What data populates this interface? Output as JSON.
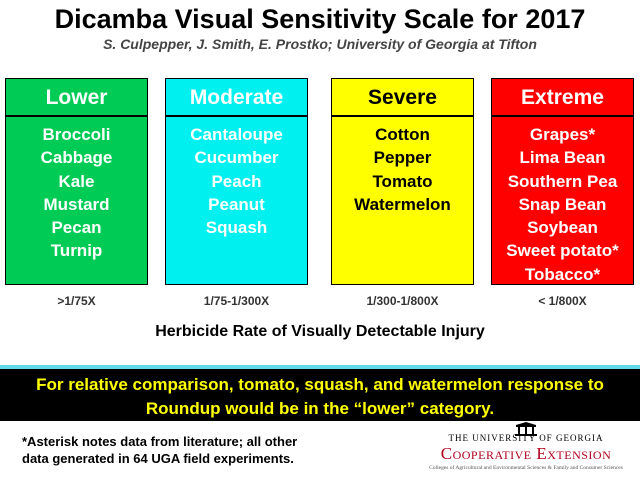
{
  "title": "Dicamba Visual Sensitivity Scale for 2017",
  "subtitle": "S. Culpepper, J. Smith, E. Prostko; University of Georgia at Tifton",
  "categories": [
    {
      "label": "Lower",
      "bg": "#00cc55",
      "text_color": "#ffffff",
      "crops": [
        "Broccoli",
        "Cabbage",
        "Kale",
        "Mustard",
        "Pecan",
        "Turnip"
      ],
      "rate": ">1/75X"
    },
    {
      "label": "Moderate",
      "bg": "#00f0f0",
      "text_color": "#ffffff",
      "crops": [
        "Cantaloupe",
        "Cucumber",
        "Peach",
        "Peanut",
        "Squash"
      ],
      "rate": "1/75-1/300X"
    },
    {
      "label": "Severe",
      "bg": "#ffff00",
      "text_color": "#000000",
      "crops": [
        "Cotton",
        "Pepper",
        "Tomato",
        "Watermelon"
      ],
      "rate": "1/300-1/800X"
    },
    {
      "label": "Extreme",
      "bg": "#ff0000",
      "text_color": "#ffffff",
      "crops": [
        "Grapes*",
        "Lima Bean",
        "Southern Pea",
        "Snap Bean",
        "Soybean",
        "Sweet potato*",
        "Tobacco*"
      ],
      "rate": "< 1/800X"
    }
  ],
  "rate_caption": "Herbicide Rate of Visually Detectable Injury",
  "banner": {
    "line1": "For relative comparison, tomato, squash, and watermelon response to",
    "line2": "Roundup would be in the “lower” category."
  },
  "footnote": {
    "line1": "*Asterisk notes data from literature; all other",
    "line2": "data generated in 64 UGA field experiments."
  },
  "logo": {
    "icon": "arch-icon",
    "university": "THE UNIVERSITY OF GEORGIA",
    "extension": "Cooperative Extension",
    "tagline": "Colleges of Agricultural and Environmental Sciences & Family and Consumer Sciences"
  }
}
